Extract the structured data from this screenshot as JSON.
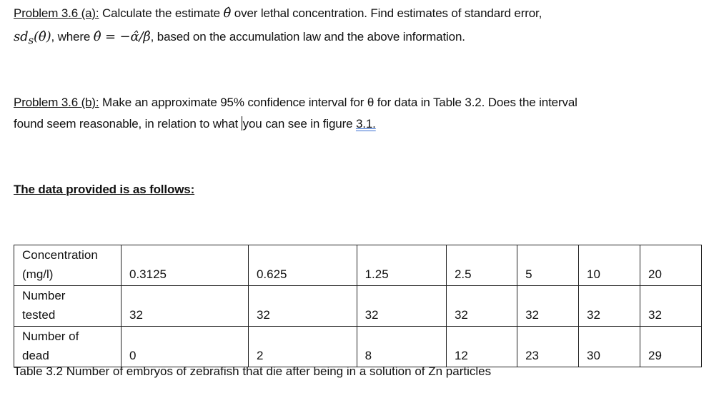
{
  "problem_a": {
    "label": "Problem 3.6 (a):",
    "text1": " Calculate the estimate ",
    "theta_hat": "θ̂",
    "text2": "  over lethal concentration. Find estimates of standard error,",
    "sd_expr": "sd",
    "sd_sub": "s",
    "sd_arg": "(θ̂)",
    "text3": ", where ",
    "formula": "θ̂ = −α̂/β̂",
    "text4": ", based on the accumulation law and the above information."
  },
  "problem_b": {
    "label": "Problem 3.6 (b):",
    "text1": " Make an approximate 95% confidence interval for θ for data in Table 3.2. Does the interval",
    "text2a": "found seem reasonable, in relation to what ",
    "text2b": "you can see in figure ",
    "figure_ref": "3.1."
  },
  "data_heading": "The data provided is as follows:",
  "table": {
    "rows": [
      {
        "header": [
          "Concentration",
          "(mg/l)"
        ],
        "values": [
          "0.3125",
          "0.625",
          "1.25",
          "2.5",
          "5",
          "10",
          "20"
        ]
      },
      {
        "header": [
          "Number",
          "tested"
        ],
        "values": [
          "32",
          "32",
          "32",
          "32",
          "32",
          "32",
          "32"
        ]
      },
      {
        "header": [
          "Number of",
          "dead"
        ],
        "values": [
          "0",
          "2",
          "8",
          "12",
          "23",
          "30",
          "29"
        ]
      }
    ],
    "caption": "Table 3.2 Number of embryos of zebrafish that die after being in a solution of Zn particles"
  }
}
